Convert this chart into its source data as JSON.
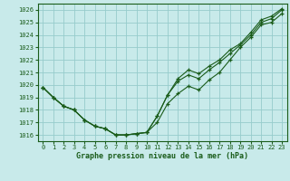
{
  "title": "Graphe pression niveau de la mer (hPa)",
  "background_color": "#c8eaea",
  "grid_color": "#96cccc",
  "line_color": "#1a5c1a",
  "marker_color": "#1a5c1a",
  "xlim": [
    -0.5,
    23.5
  ],
  "ylim": [
    1015.5,
    1026.5
  ],
  "yticks": [
    1016,
    1017,
    1018,
    1019,
    1020,
    1021,
    1022,
    1023,
    1024,
    1025,
    1026
  ],
  "xticks": [
    0,
    1,
    2,
    3,
    4,
    5,
    6,
    7,
    8,
    9,
    10,
    11,
    12,
    13,
    14,
    15,
    16,
    17,
    18,
    19,
    20,
    21,
    22,
    23
  ],
  "series": [
    [
      1019.8,
      1019.0,
      1018.3,
      1018.0,
      1017.2,
      1016.7,
      1016.5,
      1016.0,
      1016.0,
      1016.1,
      1016.2,
      1017.0,
      1018.5,
      1019.3,
      1019.9,
      1019.6,
      1020.4,
      1021.0,
      1022.0,
      1023.0,
      1023.8,
      1024.8,
      1025.0,
      1025.7
    ],
    [
      1019.8,
      1019.0,
      1018.3,
      1018.0,
      1017.2,
      1016.7,
      1016.5,
      1016.0,
      1016.0,
      1016.1,
      1016.2,
      1017.5,
      1019.2,
      1020.3,
      1020.8,
      1020.5,
      1021.2,
      1021.8,
      1022.5,
      1023.2,
      1024.0,
      1025.0,
      1025.3,
      1026.0
    ],
    [
      1019.8,
      1019.0,
      1018.3,
      1018.0,
      1017.2,
      1016.7,
      1016.5,
      1016.0,
      1016.0,
      1016.1,
      1016.2,
      1017.5,
      1019.2,
      1020.5,
      1021.2,
      1020.9,
      1021.5,
      1022.0,
      1022.8,
      1023.3,
      1024.2,
      1025.2,
      1025.5,
      1026.1
    ]
  ],
  "figsize": [
    3.2,
    2.0
  ],
  "dpi": 100
}
